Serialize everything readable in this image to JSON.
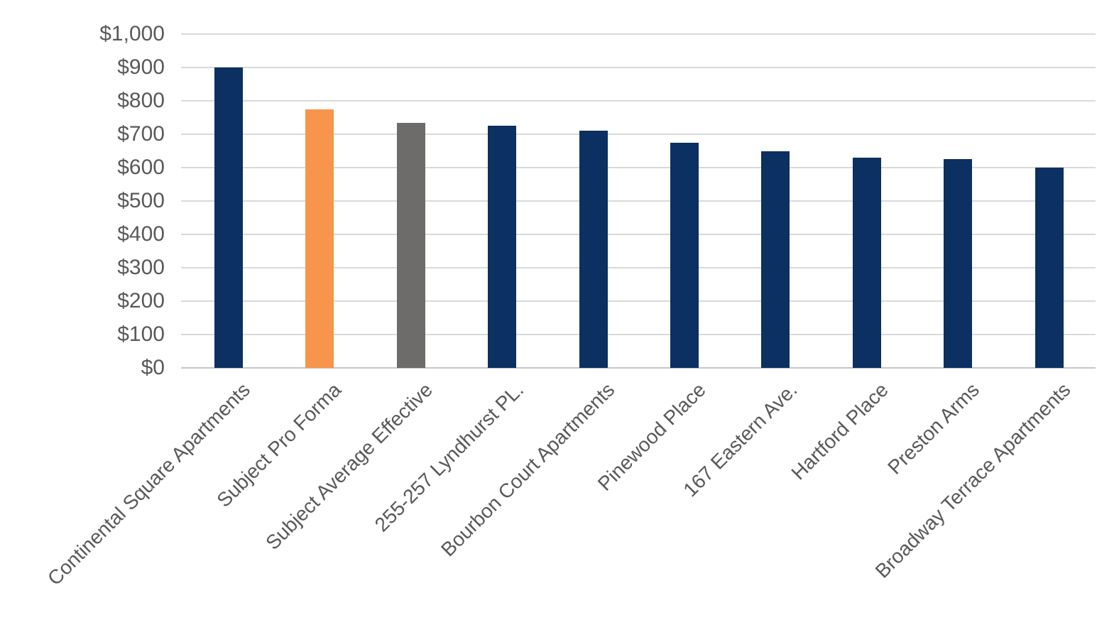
{
  "chart_data": {
    "type": "bar",
    "title": "",
    "xlabel": "",
    "ylabel": "",
    "categories": [
      "Continental Square Apartments",
      "Subject Pro Forma",
      "Subject Average Effective",
      "255-257 Lyndhurst PL.",
      "Bourbon Court Apartments",
      "Pinewood Place",
      "167 Eastern Ave.",
      "Hartford Place",
      "Preston Arms",
      "Broadway Terrace Apartments"
    ],
    "values": [
      900,
      775,
      735,
      725,
      710,
      675,
      650,
      630,
      625,
      600
    ],
    "bar_colors": [
      "#0B3061",
      "#F6954B",
      "#6E6B6B",
      "#0B3061",
      "#0B3061",
      "#0B3061",
      "#0B3061",
      "#0B3061",
      "#0B3061",
      "#0B3061"
    ],
    "ylim": [
      0,
      1000
    ],
    "ytick_step": 100,
    "ytick_labels": [
      "$0",
      "$100",
      "$200",
      "$300",
      "$400",
      "$500",
      "$600",
      "$700",
      "$800",
      "$900",
      "$1,000"
    ],
    "grid": true,
    "legend_position": "none",
    "colors": {
      "default_bar": "#0B3061",
      "highlight_bar": "#F6954B",
      "neutral_bar": "#6E6B6B",
      "gridline": "#D9D9D9",
      "axis_line": "#C6C6C6",
      "axis_label": "#595959",
      "background": "#FFFFFF"
    }
  }
}
